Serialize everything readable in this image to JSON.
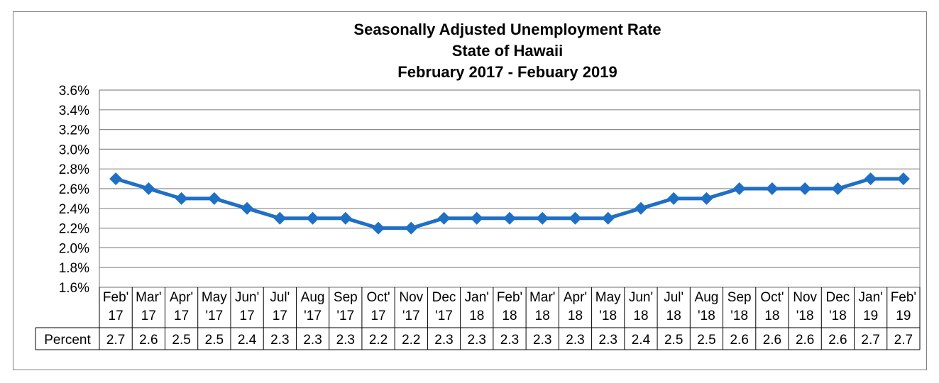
{
  "chart_data": {
    "type": "line",
    "title": [
      "Seasonally Adjusted Unemployment Rate",
      "State of Hawaii",
      "February 2017 - Febuary 2019"
    ],
    "categories": [
      [
        "Feb'",
        "17"
      ],
      [
        "Mar'",
        "17"
      ],
      [
        "Apr'",
        "17"
      ],
      [
        "May",
        "'17"
      ],
      [
        "Jun'",
        "17"
      ],
      [
        "Jul'",
        "17"
      ],
      [
        "Aug",
        "'17"
      ],
      [
        "Sep",
        "'17"
      ],
      [
        "Oct'",
        "17"
      ],
      [
        "Nov",
        "'17"
      ],
      [
        "Dec",
        "'17"
      ],
      [
        "Jan'",
        "18"
      ],
      [
        "Feb'",
        "18"
      ],
      [
        "Mar'",
        "18"
      ],
      [
        "Apr'",
        "18"
      ],
      [
        "May",
        "'18"
      ],
      [
        "Jun'",
        "18"
      ],
      [
        "Jul'",
        "18"
      ],
      [
        "Aug",
        "'18"
      ],
      [
        "Sep",
        "'18"
      ],
      [
        "Oct'",
        "18"
      ],
      [
        "Nov",
        "'18"
      ],
      [
        "Dec",
        "'18"
      ],
      [
        "Jan'",
        "19"
      ],
      [
        "Feb'",
        "19"
      ]
    ],
    "series": [
      {
        "name": "Percent",
        "color": "#1f6fc5",
        "values": [
          2.7,
          2.6,
          2.5,
          2.5,
          2.4,
          2.3,
          2.3,
          2.3,
          2.2,
          2.2,
          2.3,
          2.3,
          2.3,
          2.3,
          2.3,
          2.3,
          2.4,
          2.5,
          2.5,
          2.6,
          2.6,
          2.6,
          2.6,
          2.7,
          2.7
        ],
        "labels": [
          "2.7",
          "2.6",
          "2.5",
          "2.5",
          "2.4",
          "2.3",
          "2.3",
          "2.3",
          "2.2",
          "2.2",
          "2.3",
          "2.3",
          "2.3",
          "2.3",
          "2.3",
          "2.3",
          "2.4",
          "2.5",
          "2.5",
          "2.6",
          "2.6",
          "2.6",
          "2.6",
          "2.7",
          "2.7"
        ]
      }
    ],
    "ylim": [
      1.6,
      3.6
    ],
    "yticks": [
      "1.6%",
      "1.8%",
      "2.0%",
      "2.2%",
      "2.4%",
      "2.6%",
      "2.8%",
      "3.0%",
      "3.2%",
      "3.4%",
      "3.6%"
    ],
    "grid": true,
    "legend": "data-table"
  }
}
